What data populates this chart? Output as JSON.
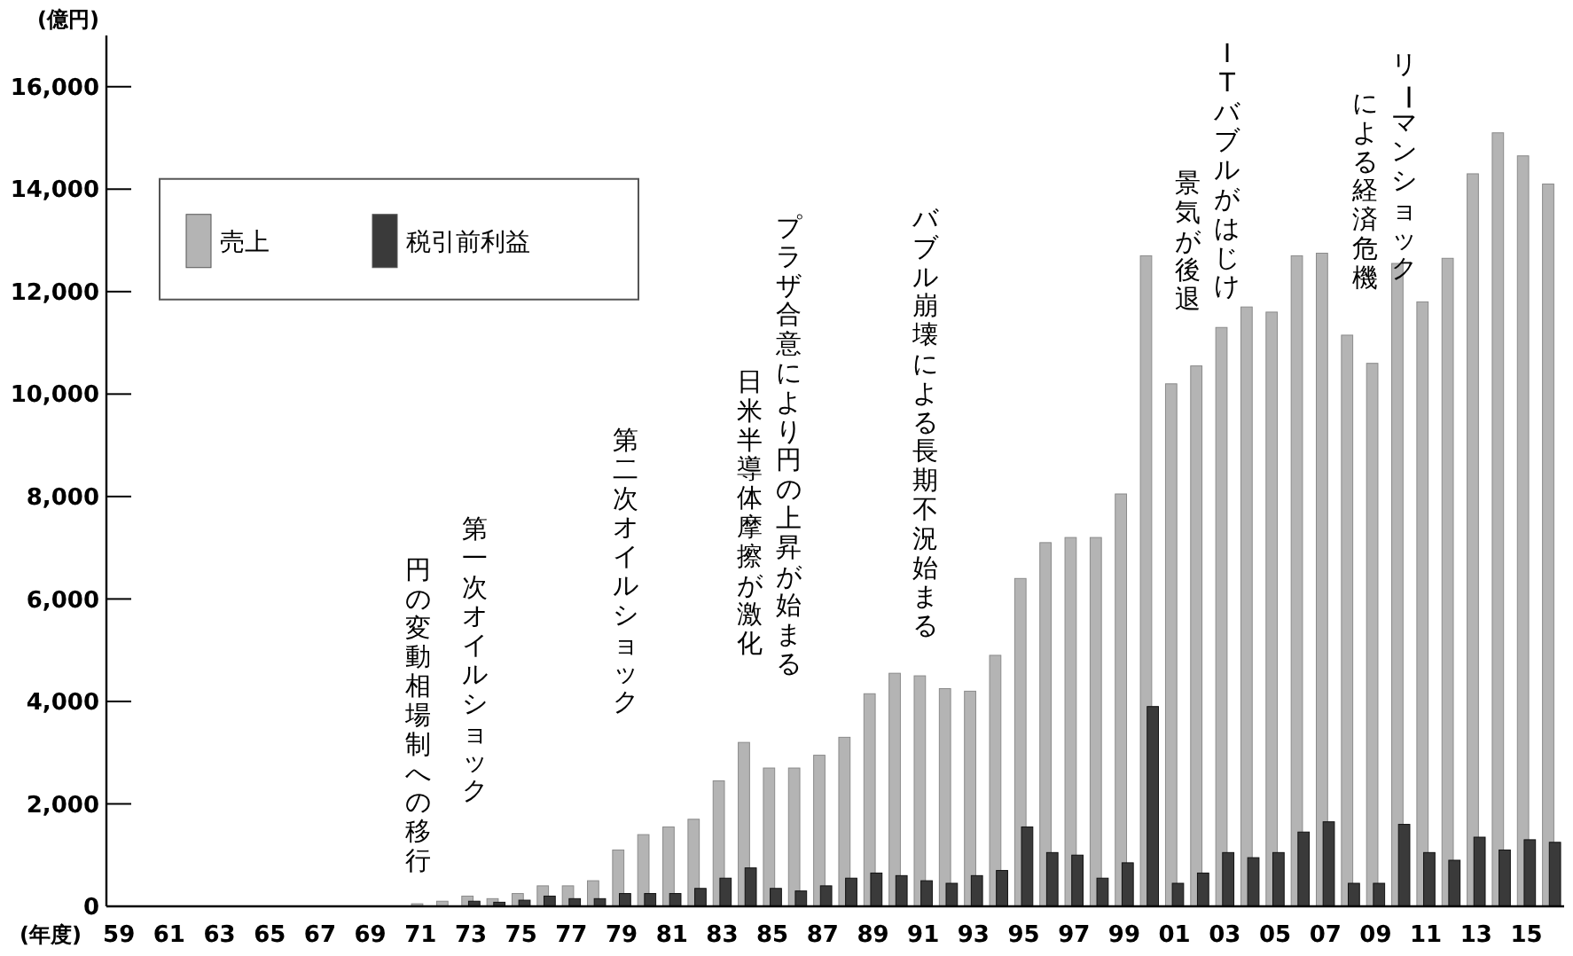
{
  "chart_data": {
    "type": "bar",
    "xlabel": "(年度)",
    "ylabel": "(億円)",
    "categories": [
      "59",
      null,
      "61",
      null,
      "63",
      null,
      "65",
      null,
      "67",
      null,
      "69",
      null,
      "71",
      null,
      "73",
      null,
      "75",
      null,
      "77",
      null,
      "79",
      null,
      "81",
      null,
      "83",
      null,
      "85",
      null,
      "87",
      null,
      "89",
      null,
      "91",
      null,
      "93",
      null,
      "95",
      null,
      "97",
      null,
      "99",
      null,
      "01",
      null,
      "03",
      null,
      "05",
      null,
      "07",
      null,
      "09",
      null,
      "11",
      null,
      "13",
      null,
      "15",
      null
    ],
    "series": [
      {
        "name": "売上",
        "color": "#b4b4b4",
        "values": [
          0,
          0,
          0,
          0,
          0,
          0,
          0,
          0,
          0,
          0,
          0,
          0,
          50,
          100,
          200,
          150,
          250,
          400,
          400,
          500,
          1100,
          1400,
          1550,
          1700,
          2450,
          3200,
          2700,
          2700,
          2950,
          3300,
          4150,
          4550,
          4500,
          4250,
          4200,
          4900,
          6400,
          7100,
          7200,
          7200,
          8050,
          12700,
          10200,
          10550,
          11300,
          11700,
          11600,
          12700,
          12750,
          11150,
          10600,
          12550,
          11800,
          12650,
          14300,
          15100,
          14650,
          14100
        ]
      },
      {
        "name": "税引前利益",
        "color": "#3a3a3a",
        "values": [
          0,
          0,
          0,
          0,
          0,
          0,
          0,
          0,
          0,
          0,
          0,
          0,
          0,
          0,
          100,
          80,
          120,
          200,
          150,
          150,
          250,
          250,
          250,
          350,
          550,
          750,
          350,
          300,
          400,
          550,
          650,
          600,
          500,
          450,
          600,
          700,
          1550,
          1050,
          1000,
          550,
          850,
          3900,
          450,
          650,
          1050,
          950,
          1050,
          1450,
          1650,
          450,
          450,
          1600,
          1050,
          900,
          1350,
          1100,
          1300,
          1250
        ]
      }
    ],
    "ylim": [
      0,
      17000
    ],
    "yticks": [
      {
        "value": 0,
        "label": "0"
      },
      {
        "value": 2000,
        "label": "2,000"
      },
      {
        "value": 4000,
        "label": "4,000"
      },
      {
        "value": 6000,
        "label": "6,000"
      },
      {
        "value": 8000,
        "label": "8,000"
      },
      {
        "value": 10000,
        "label": "10,000"
      },
      {
        "value": 12000,
        "label": "12,000"
      },
      {
        "value": 14000,
        "label": "14,000"
      },
      {
        "value": 16000,
        "label": "16,000"
      }
    ],
    "grid": false,
    "legend": "top left",
    "annotations": [
      "円の変動相場制への移行",
      "第一次オイルショック",
      "第二次オイルショック",
      "プラザ合意により円の上昇が始まる",
      "日米半導体摩擦が激化",
      "バブル崩壊による長期不況始まる",
      "ITバブルがはじけ",
      "景気が後退",
      "リーマンショック",
      "による経済危機"
    ]
  }
}
